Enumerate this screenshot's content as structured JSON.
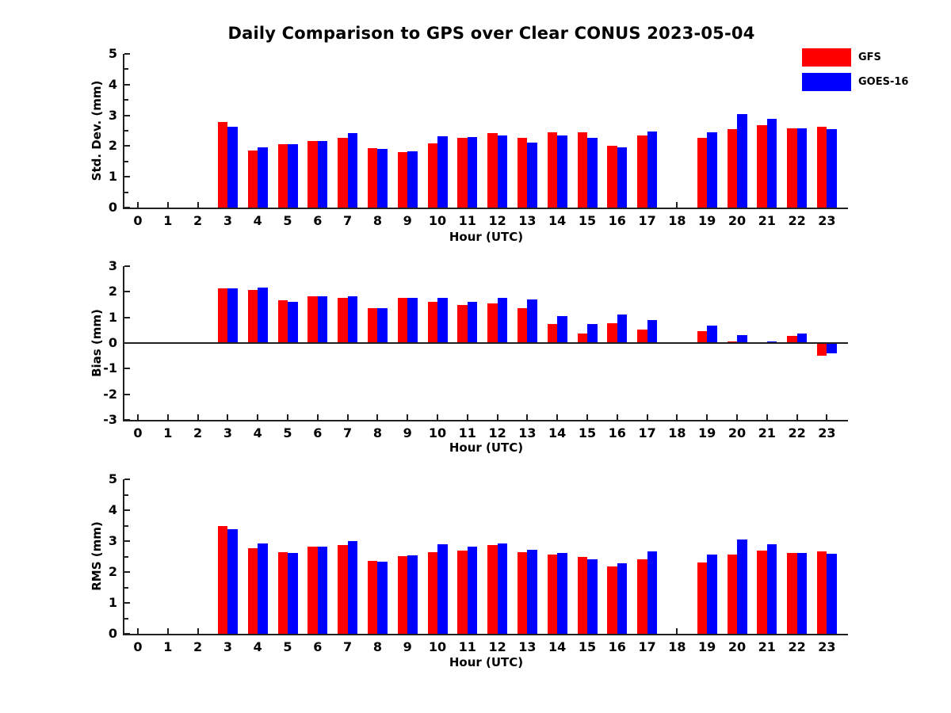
{
  "title": "Daily Comparison to GPS over Clear CONUS 2023-05-04",
  "legend": {
    "items": [
      {
        "label": "GFS",
        "color": "#ff0000"
      },
      {
        "label": "GOES-16",
        "color": "#0000ff"
      }
    ]
  },
  "chart_data": [
    {
      "type": "bar",
      "ylabel": "Std. Dev. (mm)",
      "xlabel": "Hour (UTC)",
      "ylim": [
        0,
        5
      ],
      "yticks": [
        0,
        1,
        2,
        3,
        4,
        5
      ],
      "grid": false,
      "legend_position": "upper-right-outside",
      "categories": [
        "0",
        "1",
        "2",
        "3",
        "4",
        "5",
        "6",
        "7",
        "8",
        "9",
        "10",
        "11",
        "12",
        "13",
        "14",
        "15",
        "16",
        "17",
        "18",
        "19",
        "20",
        "21",
        "22",
        "23"
      ],
      "series": [
        {
          "name": "GFS",
          "color": "#ff0000",
          "values": [
            null,
            null,
            null,
            2.78,
            1.86,
            2.06,
            2.16,
            2.27,
            1.93,
            1.8,
            2.08,
            2.27,
            2.41,
            2.26,
            2.44,
            2.44,
            2.01,
            2.35,
            null,
            2.26,
            2.54,
            2.68,
            2.59,
            2.62
          ]
        },
        {
          "name": "GOES-16",
          "color": "#0000ff",
          "values": [
            null,
            null,
            null,
            2.62,
            1.97,
            2.07,
            2.17,
            2.43,
            1.9,
            1.83,
            2.32,
            2.3,
            2.34,
            2.11,
            2.35,
            2.26,
            1.96,
            2.48,
            null,
            2.45,
            3.03,
            2.89,
            2.59,
            2.56
          ]
        }
      ]
    },
    {
      "type": "bar",
      "ylabel": "Bias (mm)",
      "xlabel": "Hour (UTC)",
      "ylim": [
        -3,
        3
      ],
      "yticks": [
        -3,
        -2,
        -1,
        0,
        1,
        2,
        3
      ],
      "grid": false,
      "zero_line": true,
      "categories": [
        "0",
        "1",
        "2",
        "3",
        "4",
        "5",
        "6",
        "7",
        "8",
        "9",
        "10",
        "11",
        "12",
        "13",
        "14",
        "15",
        "16",
        "17",
        "18",
        "19",
        "20",
        "21",
        "22",
        "23"
      ],
      "series": [
        {
          "name": "GFS",
          "color": "#ff0000",
          "values": [
            null,
            null,
            null,
            2.14,
            2.08,
            1.68,
            1.82,
            1.75,
            1.37,
            1.75,
            1.62,
            1.47,
            1.56,
            1.37,
            0.74,
            0.38,
            0.77,
            0.52,
            null,
            0.45,
            0.07,
            -0.03,
            0.29,
            -0.49
          ]
        },
        {
          "name": "GOES-16",
          "color": "#0000ff",
          "values": [
            null,
            null,
            null,
            2.14,
            2.17,
            1.61,
            1.84,
            1.81,
            1.37,
            1.75,
            1.75,
            1.62,
            1.75,
            1.7,
            1.06,
            0.73,
            1.12,
            0.91,
            null,
            0.68,
            0.32,
            0.05,
            0.38,
            -0.41
          ]
        }
      ]
    },
    {
      "type": "bar",
      "ylabel": "RMS (mm)",
      "xlabel": "Hour (UTC)",
      "ylim": [
        0,
        5
      ],
      "yticks": [
        0,
        1,
        2,
        3,
        4,
        5
      ],
      "grid": false,
      "categories": [
        "0",
        "1",
        "2",
        "3",
        "4",
        "5",
        "6",
        "7",
        "8",
        "9",
        "10",
        "11",
        "12",
        "13",
        "14",
        "15",
        "16",
        "17",
        "18",
        "19",
        "20",
        "21",
        "22",
        "23"
      ],
      "series": [
        {
          "name": "GFS",
          "color": "#ff0000",
          "values": [
            null,
            null,
            null,
            3.48,
            2.78,
            2.65,
            2.83,
            2.86,
            2.37,
            2.51,
            2.65,
            2.7,
            2.88,
            2.65,
            2.56,
            2.5,
            2.17,
            2.41,
            null,
            2.31,
            2.56,
            2.7,
            2.61,
            2.67
          ]
        },
        {
          "name": "GOES-16",
          "color": "#0000ff",
          "values": [
            null,
            null,
            null,
            3.38,
            2.93,
            2.61,
            2.81,
            3.01,
            2.34,
            2.53,
            2.9,
            2.81,
            2.93,
            2.72,
            2.61,
            2.4,
            2.28,
            2.66,
            null,
            2.56,
            3.05,
            2.91,
            2.61,
            2.58
          ]
        }
      ]
    }
  ]
}
